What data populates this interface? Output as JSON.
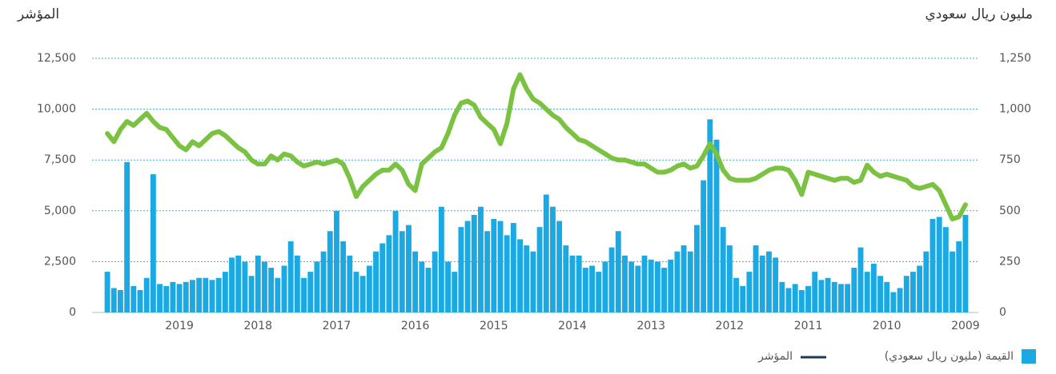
{
  "chart_data": {
    "type": "bar_line",
    "y_label": "المؤشر",
    "y2_label": "مليون ريال سعودي",
    "categories": [
      "2009",
      null,
      null,
      null,
      null,
      null,
      null,
      null,
      null,
      null,
      null,
      null,
      "2010",
      null,
      null,
      null,
      null,
      null,
      null,
      null,
      null,
      null,
      null,
      null,
      "2011",
      null,
      null,
      null,
      null,
      null,
      null,
      null,
      null,
      null,
      null,
      null,
      "2012",
      null,
      null,
      null,
      null,
      null,
      null,
      null,
      null,
      null,
      null,
      null,
      "2013",
      null,
      null,
      null,
      null,
      null,
      null,
      null,
      null,
      null,
      null,
      null,
      "2014",
      null,
      null,
      null,
      null,
      null,
      null,
      null,
      null,
      null,
      null,
      null,
      "2015",
      null,
      null,
      null,
      null,
      null,
      null,
      null,
      null,
      null,
      null,
      null,
      "2016",
      null,
      null,
      null,
      null,
      null,
      null,
      null,
      null,
      null,
      null,
      null,
      "2017",
      null,
      null,
      null,
      null,
      null,
      null,
      null,
      null,
      null,
      null,
      null,
      "2018",
      null,
      null,
      null,
      null,
      null,
      null,
      null,
      null,
      null,
      null,
      null,
      "2019",
      null,
      null,
      null,
      null,
      null,
      null,
      null,
      null,
      null,
      null,
      null
    ],
    "x_reversed": true,
    "series": [
      {
        "name": "القيمة (مليون ريال سعودي)",
        "type": "bar",
        "axis": "y2",
        "color": "#1aa9e2",
        "values": [
          480,
          350,
          300,
          420,
          470,
          460,
          300,
          230,
          200,
          180,
          120,
          100,
          150,
          180,
          240,
          200,
          320,
          220,
          140,
          140,
          150,
          170,
          160,
          200,
          130,
          110,
          140,
          120,
          150,
          270,
          300,
          280,
          330,
          200,
          130,
          170,
          330,
          420,
          850,
          950,
          650,
          430,
          300,
          330,
          300,
          260,
          220,
          250,
          260,
          280,
          230,
          250,
          280,
          400,
          320,
          250,
          200,
          230,
          220,
          280,
          280,
          330,
          450,
          520,
          580,
          420,
          300,
          330,
          360,
          440,
          380,
          450,
          460,
          400,
          520,
          480,
          450,
          420,
          200,
          250,
          520,
          300,
          220,
          250,
          300,
          430,
          400,
          500,
          380,
          340,
          300,
          230,
          180,
          200,
          280,
          350,
          500,
          400,
          300,
          250,
          200,
          170,
          280,
          350,
          230,
          170,
          220,
          250,
          280,
          180,
          250,
          280,
          270,
          200,
          170,
          160,
          170,
          170,
          160,
          150,
          140,
          150,
          130,
          140,
          680,
          170,
          110,
          130,
          740,
          110,
          120,
          200
        ]
      },
      {
        "name": "المؤشر",
        "type": "line",
        "axis": "y",
        "color": "#7cc242",
        "values": [
          5300,
          4700,
          4600,
          5300,
          6000,
          6300,
          6200,
          6100,
          6200,
          6500,
          6600,
          6700,
          6800,
          6700,
          6900,
          7250,
          6500,
          6400,
          6600,
          6600,
          6500,
          6600,
          6700,
          6800,
          6900,
          5800,
          6500,
          7000,
          7100,
          7100,
          7000,
          6800,
          6600,
          6500,
          6500,
          6500,
          6600,
          7000,
          7800,
          8300,
          7700,
          7200,
          7100,
          7300,
          7200,
          7000,
          6900,
          6900,
          7100,
          7300,
          7300,
          7400,
          7500,
          7500,
          7600,
          7800,
          8000,
          8200,
          8400,
          8500,
          8800,
          9100,
          9500,
          9700,
          10000,
          10300,
          10500,
          11000,
          11700,
          11000,
          9300,
          8300,
          9000,
          9300,
          9600,
          10200,
          10400,
          10300,
          9700,
          8800,
          8100,
          7900,
          7600,
          7300,
          6000,
          6300,
          7000,
          7300,
          7000,
          7000,
          6800,
          6500,
          6200,
          5700,
          6600,
          7300,
          7500,
          7400,
          7300,
          7400,
          7300,
          7200,
          7400,
          7700,
          7800,
          7500,
          7700,
          7300,
          7300,
          7500,
          7900,
          8100,
          8400,
          8700,
          8900,
          8800,
          8500,
          8200,
          8400,
          8000,
          8200,
          8600,
          9000,
          9100,
          9400,
          9800,
          9500,
          9200,
          9400,
          9000,
          8400,
          8800
        ]
      }
    ],
    "ylim": [
      0,
      12500
    ],
    "yticks": [
      0,
      {
        "value": 2500,
        "label": "2,500"
      },
      {
        "value": 5000,
        "label": "5,000"
      },
      {
        "value": 7500,
        "label": "7,500"
      },
      {
        "value": 10000,
        "label": "10,000"
      },
      {
        "value": 12500,
        "label": "12,500"
      }
    ],
    "y2lim": [
      0,
      1250
    ],
    "y2ticks": [
      0,
      250,
      500,
      750,
      {
        "value": 1000,
        "label": "1,000"
      },
      {
        "value": 1250,
        "label": "1,250"
      }
    ],
    "grid": true
  }
}
